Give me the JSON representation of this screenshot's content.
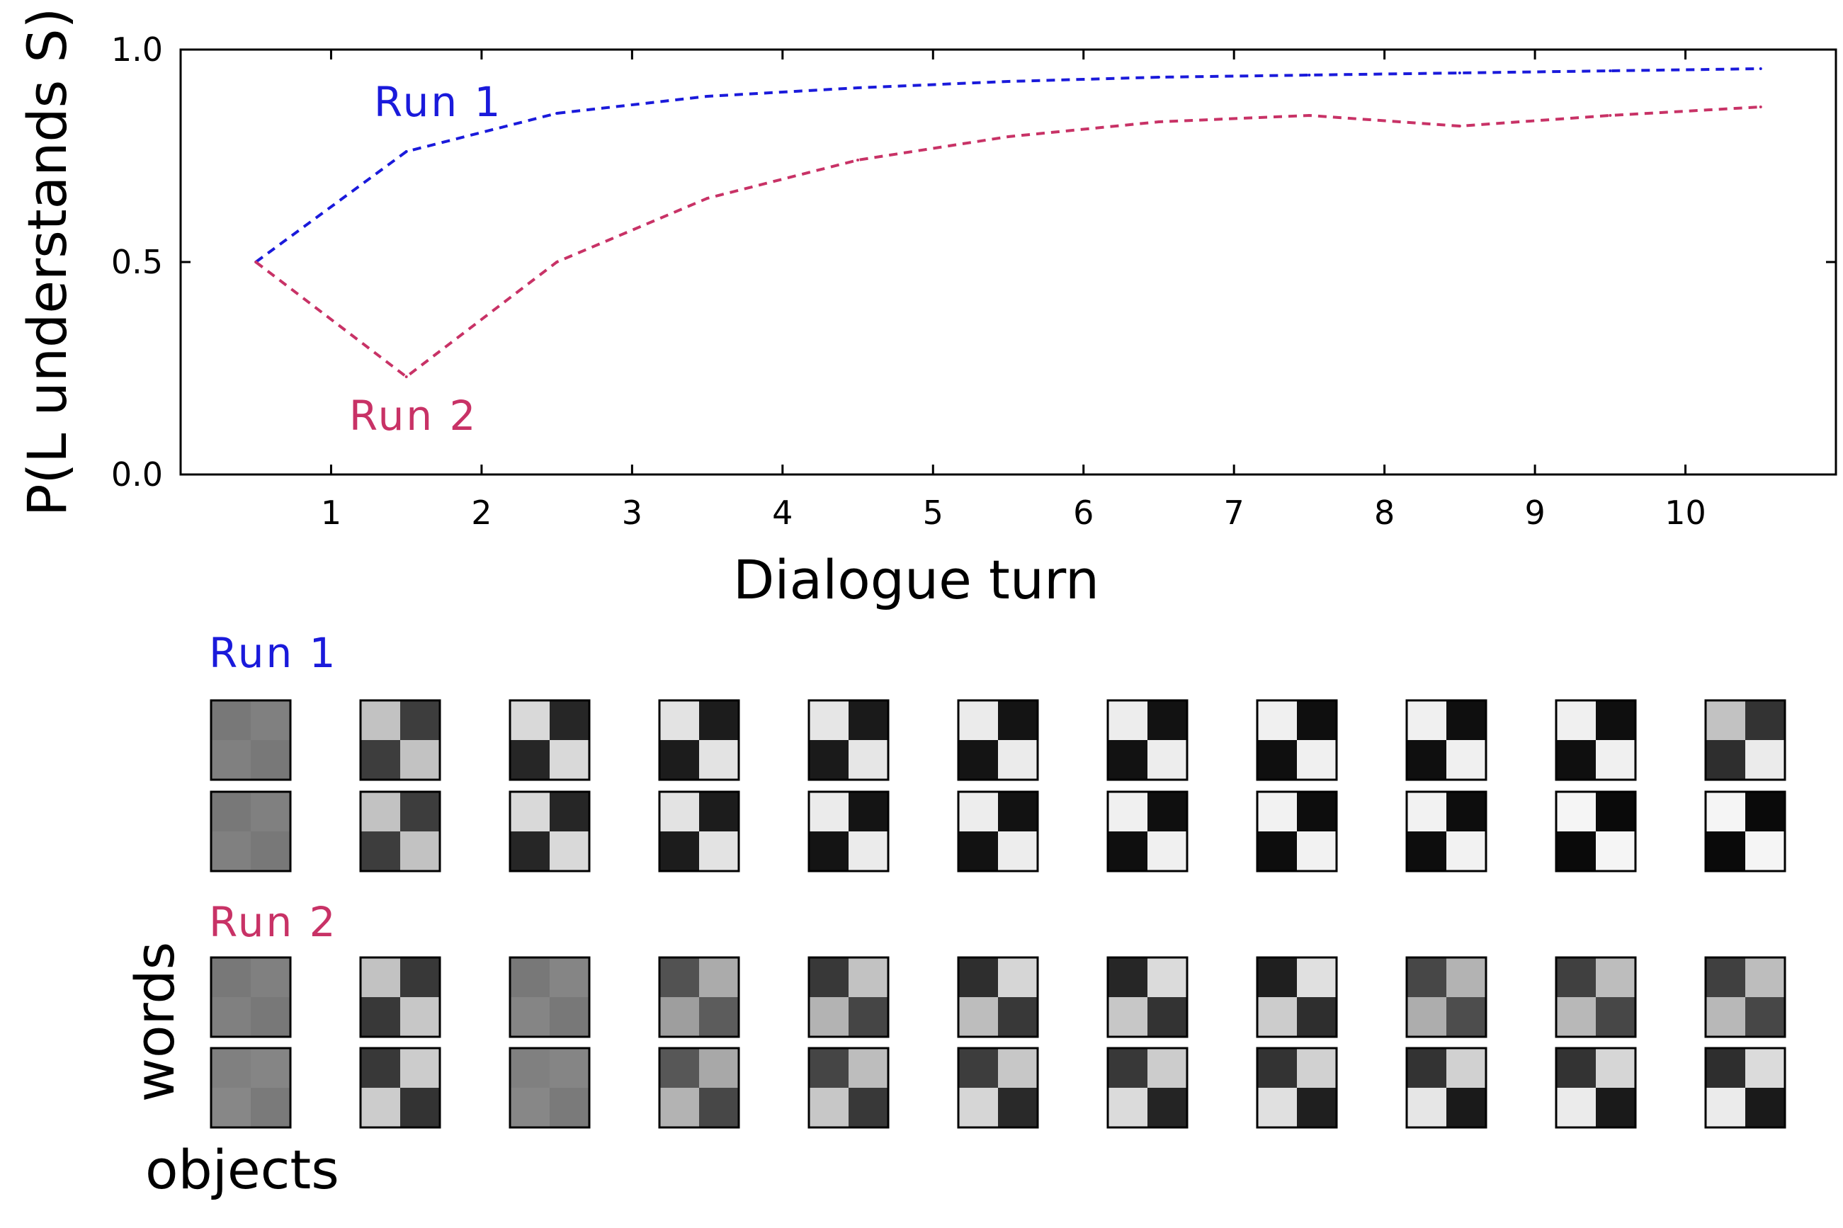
{
  "chart_data": [
    {
      "type": "line",
      "title": "",
      "xlabel": "Dialogue turn",
      "ylabel": "P(L understands S)",
      "xlim": [
        0,
        11
      ],
      "ylim": [
        0,
        1
      ],
      "x_ticks": [
        "1",
        "2",
        "3",
        "4",
        "5",
        "6",
        "7",
        "8",
        "9",
        "10"
      ],
      "y_ticks": [
        "0.0",
        "0.5",
        "1.0"
      ],
      "line_style": "dashed",
      "x": [
        0.5,
        1.5,
        2.5,
        3.5,
        4.5,
        5.5,
        6.5,
        7.5,
        8.5,
        9.5,
        10.5
      ],
      "series": [
        {
          "name": "Run 1",
          "color": "#1a1adb",
          "values": [
            0.5,
            0.76,
            0.85,
            0.89,
            0.91,
            0.925,
            0.935,
            0.94,
            0.945,
            0.95,
            0.955
          ]
        },
        {
          "name": "Run 2",
          "color": "#c83266",
          "values": [
            0.5,
            0.23,
            0.5,
            0.65,
            0.74,
            0.795,
            0.83,
            0.845,
            0.82,
            0.845,
            0.865
          ]
        }
      ]
    },
    {
      "type": "heatmap",
      "row_label": "words",
      "col_label": "objects",
      "value_meaning": "cell brightness, 0 = black, 1 = white",
      "runs": [
        {
          "name": "Run 1",
          "color": "#1a1adb",
          "rows": [
            [
              [
                [
                  0.47,
                  0.5
                ],
                [
                  0.5,
                  0.47
                ]
              ],
              [
                [
                  0.76,
                  0.24
                ],
                [
                  0.24,
                  0.76
                ]
              ],
              [
                [
                  0.85,
                  0.15
                ],
                [
                  0.15,
                  0.85
                ]
              ],
              [
                [
                  0.89,
                  0.11
                ],
                [
                  0.11,
                  0.89
                ]
              ],
              [
                [
                  0.9,
                  0.1
                ],
                [
                  0.1,
                  0.9
                ]
              ],
              [
                [
                  0.92,
                  0.08
                ],
                [
                  0.08,
                  0.92
                ]
              ],
              [
                [
                  0.93,
                  0.07
                ],
                [
                  0.07,
                  0.93
                ]
              ],
              [
                [
                  0.94,
                  0.06
                ],
                [
                  0.06,
                  0.94
                ]
              ],
              [
                [
                  0.94,
                  0.06
                ],
                [
                  0.06,
                  0.94
                ]
              ],
              [
                [
                  0.94,
                  0.06
                ],
                [
                  0.06,
                  0.94
                ]
              ],
              [
                [
                  0.76,
                  0.2
                ],
                [
                  0.18,
                  0.92
                ]
              ]
            ],
            [
              [
                [
                  0.47,
                  0.5
                ],
                [
                  0.5,
                  0.47
                ]
              ],
              [
                [
                  0.76,
                  0.24
                ],
                [
                  0.24,
                  0.76
                ]
              ],
              [
                [
                  0.85,
                  0.15
                ],
                [
                  0.15,
                  0.85
                ]
              ],
              [
                [
                  0.89,
                  0.11
                ],
                [
                  0.11,
                  0.89
                ]
              ],
              [
                [
                  0.92,
                  0.08
                ],
                [
                  0.08,
                  0.92
                ]
              ],
              [
                [
                  0.93,
                  0.07
                ],
                [
                  0.07,
                  0.93
                ]
              ],
              [
                [
                  0.94,
                  0.06
                ],
                [
                  0.06,
                  0.94
                ]
              ],
              [
                [
                  0.95,
                  0.05
                ],
                [
                  0.05,
                  0.95
                ]
              ],
              [
                [
                  0.95,
                  0.05
                ],
                [
                  0.05,
                  0.95
                ]
              ],
              [
                [
                  0.96,
                  0.04
                ],
                [
                  0.04,
                  0.96
                ]
              ],
              [
                [
                  0.96,
                  0.04
                ],
                [
                  0.04,
                  0.96
                ]
              ]
            ]
          ]
        },
        {
          "name": "Run 2",
          "color": "#c83266",
          "rows": [
            [
              [
                [
                  0.47,
                  0.5
                ],
                [
                  0.5,
                  0.47
                ]
              ],
              [
                [
                  0.76,
                  0.22
                ],
                [
                  0.22,
                  0.78
                ]
              ],
              [
                [
                  0.47,
                  0.52
                ],
                [
                  0.52,
                  0.47
                ]
              ],
              [
                [
                  0.32,
                  0.67
                ],
                [
                  0.62,
                  0.36
                ]
              ],
              [
                [
                  0.22,
                  0.76
                ],
                [
                  0.7,
                  0.27
                ]
              ],
              [
                [
                  0.18,
                  0.84
                ],
                [
                  0.74,
                  0.22
                ]
              ],
              [
                [
                  0.15,
                  0.86
                ],
                [
                  0.78,
                  0.2
                ]
              ],
              [
                [
                  0.12,
                  0.88
                ],
                [
                  0.8,
                  0.18
                ]
              ],
              [
                [
                  0.28,
                  0.7
                ],
                [
                  0.68,
                  0.3
                ]
              ],
              [
                [
                  0.25,
                  0.74
                ],
                [
                  0.72,
                  0.28
                ]
              ],
              [
                [
                  0.25,
                  0.74
                ],
                [
                  0.72,
                  0.28
                ]
              ]
            ],
            [
              [
                [
                  0.5,
                  0.52
                ],
                [
                  0.53,
                  0.48
                ]
              ],
              [
                [
                  0.22,
                  0.8
                ],
                [
                  0.8,
                  0.2
                ]
              ],
              [
                [
                  0.5,
                  0.52
                ],
                [
                  0.53,
                  0.48
                ]
              ],
              [
                [
                  0.34,
                  0.66
                ],
                [
                  0.7,
                  0.28
                ]
              ],
              [
                [
                  0.27,
                  0.74
                ],
                [
                  0.78,
                  0.22
                ]
              ],
              [
                [
                  0.24,
                  0.78
                ],
                [
                  0.84,
                  0.16
                ]
              ],
              [
                [
                  0.22,
                  0.8
                ],
                [
                  0.86,
                  0.14
                ]
              ],
              [
                [
                  0.2,
                  0.82
                ],
                [
                  0.88,
                  0.12
                ]
              ],
              [
                [
                  0.2,
                  0.82
                ],
                [
                  0.9,
                  0.1
                ]
              ],
              [
                [
                  0.2,
                  0.84
                ],
                [
                  0.92,
                  0.1
                ]
              ],
              [
                [
                  0.18,
                  0.86
                ],
                [
                  0.92,
                  0.1
                ]
              ]
            ]
          ]
        }
      ]
    }
  ]
}
